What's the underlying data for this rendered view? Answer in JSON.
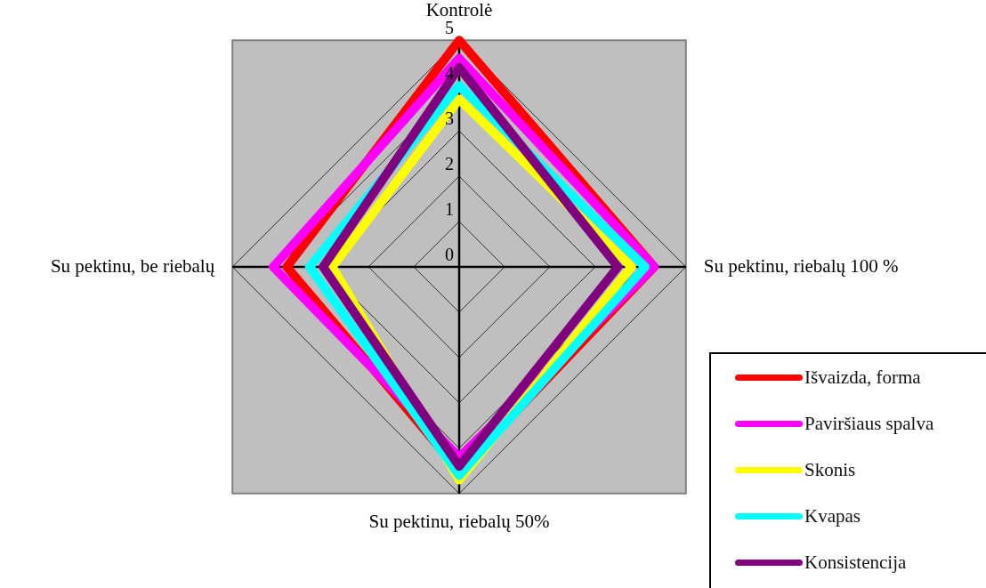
{
  "chart_data": {
    "type": "radar",
    "categories": [
      "Kontrolė",
      "Su pektinu, riebalų 100 %",
      "Su pektinu, riebalų 50%",
      "Su pektinu, be riebalų"
    ],
    "series": [
      {
        "name": "Išvaizda, forma",
        "color": "#ff0000",
        "values": [
          5.0,
          4.3,
          4.5,
          3.8
        ]
      },
      {
        "name": "Paviršiaus spalva",
        "color": "#ff00ff",
        "values": [
          4.6,
          4.3,
          4.2,
          4.1
        ]
      },
      {
        "name": "Skonis",
        "color": "#ffff00",
        "values": [
          3.7,
          3.8,
          4.7,
          2.8
        ]
      },
      {
        "name": "Kvapas",
        "color": "#00ffff",
        "values": [
          4.0,
          4.1,
          4.6,
          3.3
        ]
      },
      {
        "name": "Konsistencija",
        "color": "#800080",
        "values": [
          4.4,
          3.5,
          4.4,
          3.0
        ]
      }
    ],
    "ylim": [
      0,
      5
    ],
    "yticks": [
      0,
      1,
      2,
      3,
      4,
      5
    ],
    "grid": true,
    "legend": "bottom right",
    "marker": "none",
    "line_style": "solid"
  }
}
